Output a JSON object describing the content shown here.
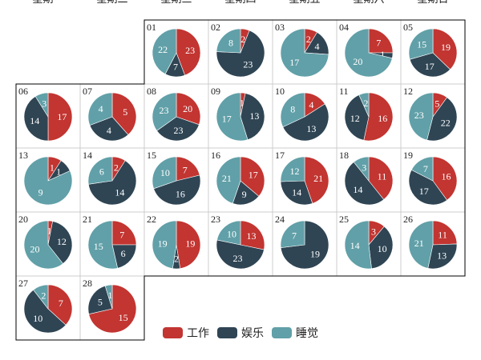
{
  "chart_data": {
    "type": "pie",
    "title": "",
    "weekdays": [
      "星期一",
      "星期二",
      "星期三",
      "星期四",
      "星期五",
      "星期六",
      "星期日"
    ],
    "categories": [
      "工作",
      "娱乐",
      "睡觉"
    ],
    "colors": [
      "#c23531",
      "#2f4554",
      "#61a0a8"
    ],
    "first_weekday_index": 2,
    "days": [
      {
        "day": "01",
        "values": [
          23,
          7,
          22
        ]
      },
      {
        "day": "02",
        "values": [
          2,
          23,
          8
        ]
      },
      {
        "day": "03",
        "values": [
          2,
          4,
          17
        ]
      },
      {
        "day": "04",
        "values": [
          7,
          1,
          20
        ]
      },
      {
        "day": "05",
        "values": [
          19,
          17,
          15
        ]
      },
      {
        "day": "06",
        "values": [
          17,
          14,
          3
        ]
      },
      {
        "day": "07",
        "values": [
          5,
          4,
          4
        ]
      },
      {
        "day": "08",
        "values": [
          20,
          23,
          23
        ]
      },
      {
        "day": "09",
        "values": [
          1,
          13,
          17
        ]
      },
      {
        "day": "10",
        "values": [
          4,
          13,
          8
        ]
      },
      {
        "day": "11",
        "values": [
          16,
          12,
          2
        ]
      },
      {
        "day": "12",
        "values": [
          5,
          22,
          23
        ]
      },
      {
        "day": "13",
        "values": [
          1,
          1,
          9
        ]
      },
      {
        "day": "14",
        "values": [
          2,
          14,
          6
        ]
      },
      {
        "day": "15",
        "values": [
          7,
          16,
          10
        ]
      },
      {
        "day": "16",
        "values": [
          17,
          9,
          21
        ]
      },
      {
        "day": "17",
        "values": [
          21,
          14,
          12
        ]
      },
      {
        "day": "18",
        "values": [
          11,
          14,
          3
        ]
      },
      {
        "day": "19",
        "values": [
          16,
          17,
          7
        ]
      },
      {
        "day": "20",
        "values": [
          1,
          12,
          20
        ]
      },
      {
        "day": "21",
        "values": [
          7,
          6,
          15
        ]
      },
      {
        "day": "22",
        "values": [
          19,
          2,
          19
        ]
      },
      {
        "day": "23",
        "values": [
          13,
          23,
          10
        ]
      },
      {
        "day": "24",
        "values": [
          0,
          19,
          7
        ]
      },
      {
        "day": "25",
        "values": [
          3,
          10,
          14
        ]
      },
      {
        "day": "26",
        "values": [
          11,
          13,
          21
        ]
      },
      {
        "day": "27",
        "values": [
          7,
          10,
          2
        ]
      },
      {
        "day": "28",
        "values": [
          15,
          5,
          1
        ]
      }
    ]
  }
}
